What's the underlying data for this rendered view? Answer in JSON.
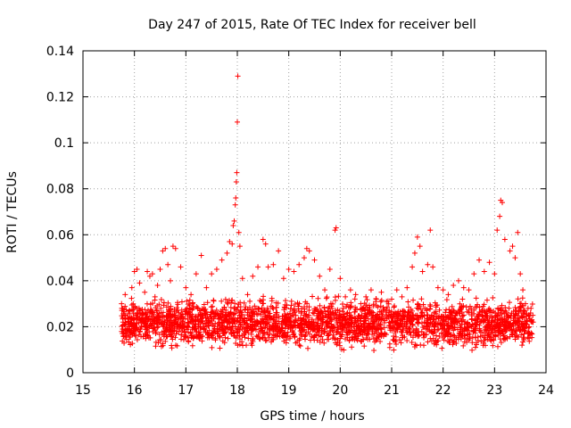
{
  "chart_data": {
    "type": "scatter",
    "title": "Day 247 of 2015, Rate Of TEC Index for receiver bell",
    "xlabel": "GPS time / hours",
    "ylabel": "ROTI / TECUs",
    "xlim": [
      15,
      24
    ],
    "ylim": [
      0,
      0.14
    ],
    "x_ticks": [
      "15",
      "16",
      "17",
      "18",
      "19",
      "20",
      "21",
      "22",
      "23",
      "24"
    ],
    "y_ticks": [
      "0",
      "0.02",
      "0.04",
      "0.06",
      "0.08",
      "0.1",
      "0.12",
      "0.14"
    ],
    "grid": true,
    "marker": "+",
    "color": "#ff0000",
    "series": [
      {
        "name": "ROTI",
        "points": [
          [
            15.75,
            0.03
          ],
          [
            15.78,
            0.022
          ],
          [
            15.82,
            0.034
          ],
          [
            15.86,
            0.018
          ],
          [
            15.9,
            0.027
          ],
          [
            15.95,
            0.037
          ],
          [
            16.0,
            0.044
          ],
          [
            16.05,
            0.045
          ],
          [
            16.1,
            0.039
          ],
          [
            16.15,
            0.025
          ],
          [
            16.2,
            0.035
          ],
          [
            16.25,
            0.044
          ],
          [
            16.3,
            0.042
          ],
          [
            16.35,
            0.043
          ],
          [
            16.4,
            0.033
          ],
          [
            16.45,
            0.038
          ],
          [
            16.5,
            0.045
          ],
          [
            16.55,
            0.053
          ],
          [
            16.6,
            0.054
          ],
          [
            16.65,
            0.047
          ],
          [
            16.7,
            0.04
          ],
          [
            16.75,
            0.055
          ],
          [
            16.8,
            0.054
          ],
          [
            16.9,
            0.046
          ],
          [
            17.0,
            0.037
          ],
          [
            17.1,
            0.034
          ],
          [
            17.2,
            0.043
          ],
          [
            17.3,
            0.051
          ],
          [
            17.4,
            0.037
          ],
          [
            17.5,
            0.043
          ],
          [
            17.6,
            0.045
          ],
          [
            17.7,
            0.049
          ],
          [
            17.8,
            0.052
          ],
          [
            17.85,
            0.057
          ],
          [
            17.9,
            0.056
          ],
          [
            17.92,
            0.064
          ],
          [
            17.94,
            0.066
          ],
          [
            17.96,
            0.073
          ],
          [
            17.97,
            0.076
          ],
          [
            17.98,
            0.083
          ],
          [
            17.99,
            0.087
          ],
          [
            18.0,
            0.109
          ],
          [
            18.01,
            0.129
          ],
          [
            18.03,
            0.061
          ],
          [
            18.05,
            0.055
          ],
          [
            18.1,
            0.041
          ],
          [
            18.2,
            0.034
          ],
          [
            18.3,
            0.042
          ],
          [
            18.4,
            0.046
          ],
          [
            18.5,
            0.058
          ],
          [
            18.55,
            0.056
          ],
          [
            18.6,
            0.046
          ],
          [
            18.7,
            0.047
          ],
          [
            18.8,
            0.053
          ],
          [
            18.9,
            0.041
          ],
          [
            19.0,
            0.045
          ],
          [
            19.1,
            0.044
          ],
          [
            19.2,
            0.047
          ],
          [
            19.3,
            0.05
          ],
          [
            19.35,
            0.054
          ],
          [
            19.4,
            0.053
          ],
          [
            19.5,
            0.049
          ],
          [
            19.6,
            0.042
          ],
          [
            19.7,
            0.036
          ],
          [
            19.8,
            0.045
          ],
          [
            19.9,
            0.062
          ],
          [
            19.92,
            0.063
          ],
          [
            20.0,
            0.041
          ],
          [
            20.1,
            0.033
          ],
          [
            20.2,
            0.036
          ],
          [
            20.3,
            0.034
          ],
          [
            20.4,
            0.03
          ],
          [
            20.5,
            0.033
          ],
          [
            20.6,
            0.036
          ],
          [
            20.7,
            0.032
          ],
          [
            20.8,
            0.035
          ],
          [
            20.9,
            0.031
          ],
          [
            21.0,
            0.032
          ],
          [
            21.1,
            0.036
          ],
          [
            21.2,
            0.033
          ],
          [
            21.3,
            0.037
          ],
          [
            21.4,
            0.046
          ],
          [
            21.45,
            0.052
          ],
          [
            21.5,
            0.059
          ],
          [
            21.55,
            0.055
          ],
          [
            21.6,
            0.044
          ],
          [
            21.7,
            0.047
          ],
          [
            21.75,
            0.062
          ],
          [
            21.8,
            0.046
          ],
          [
            21.9,
            0.037
          ],
          [
            22.0,
            0.036
          ],
          [
            22.1,
            0.034
          ],
          [
            22.2,
            0.038
          ],
          [
            22.3,
            0.04
          ],
          [
            22.4,
            0.037
          ],
          [
            22.5,
            0.036
          ],
          [
            22.6,
            0.043
          ],
          [
            22.7,
            0.049
          ],
          [
            22.8,
            0.044
          ],
          [
            22.9,
            0.048
          ],
          [
            23.0,
            0.043
          ],
          [
            23.05,
            0.062
          ],
          [
            23.1,
            0.068
          ],
          [
            23.12,
            0.075
          ],
          [
            23.15,
            0.074
          ],
          [
            23.2,
            0.058
          ],
          [
            23.3,
            0.053
          ],
          [
            23.35,
            0.055
          ],
          [
            23.4,
            0.05
          ],
          [
            23.45,
            0.061
          ],
          [
            23.5,
            0.043
          ],
          [
            23.55,
            0.036
          ],
          [
            23.6,
            0.03
          ],
          [
            23.65,
            0.028
          ],
          [
            23.7,
            0.026
          ],
          [
            23.75,
            0.022
          ]
        ],
        "dense_band": {
          "x_range": [
            15.75,
            23.75
          ],
          "y_range": [
            0.008,
            0.035
          ],
          "typical_y": 0.02
        }
      }
    ]
  }
}
